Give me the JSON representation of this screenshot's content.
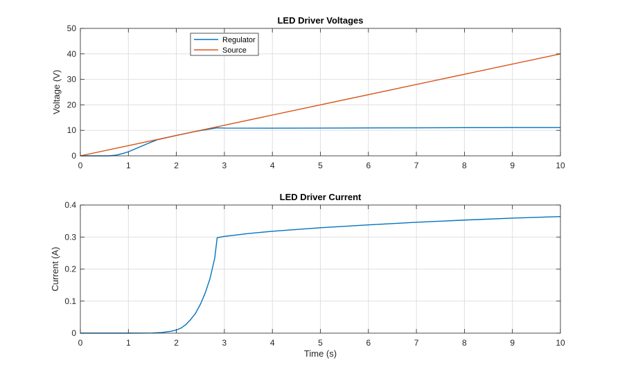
{
  "chart_data": [
    {
      "type": "line",
      "title": "LED Driver Voltages",
      "xlabel": "",
      "ylabel": "Voltage (V)",
      "xlim": [
        0,
        10
      ],
      "ylim": [
        0,
        50
      ],
      "xticks": [
        0,
        1,
        2,
        3,
        4,
        5,
        6,
        7,
        8,
        9,
        10
      ],
      "yticks": [
        0,
        10,
        20,
        30,
        40,
        50
      ],
      "grid": true,
      "legend_position": "top-left",
      "series": [
        {
          "name": "Regulator",
          "color": "#0072BD",
          "x": [
            0,
            0.6,
            0.75,
            0.9,
            1.0,
            1.2,
            1.4,
            1.6,
            2.0,
            2.4,
            2.85,
            3.0,
            4.0,
            5.0,
            6.0,
            7.0,
            8.0,
            9.0,
            10.0
          ],
          "y": [
            0,
            0,
            0.3,
            1.0,
            1.6,
            3.2,
            4.8,
            6.3,
            8.0,
            9.6,
            11.0,
            10.9,
            10.85,
            10.9,
            10.95,
            11.0,
            11.05,
            11.1,
            11.1
          ]
        },
        {
          "name": "Source",
          "color": "#D95319",
          "x": [
            0,
            10
          ],
          "y": [
            0,
            40
          ]
        }
      ]
    },
    {
      "type": "line",
      "title": "LED Driver Current",
      "xlabel": "Time (s)",
      "ylabel": "Current (A)",
      "xlim": [
        0,
        10
      ],
      "ylim": [
        0,
        0.4
      ],
      "xticks": [
        0,
        1,
        2,
        3,
        4,
        5,
        6,
        7,
        8,
        9,
        10
      ],
      "yticks": [
        0,
        0.1,
        0.2,
        0.3,
        0.4
      ],
      "grid": true,
      "series": [
        {
          "name": "",
          "color": "#0072BD",
          "x": [
            0,
            1.0,
            1.5,
            1.7,
            1.9,
            2.0,
            2.1,
            2.2,
            2.3,
            2.4,
            2.5,
            2.6,
            2.7,
            2.8,
            2.85,
            3.0,
            3.5,
            4.0,
            5.0,
            6.0,
            7.0,
            8.0,
            9.0,
            10.0
          ],
          "y": [
            0,
            0,
            0.0005,
            0.002,
            0.006,
            0.01,
            0.016,
            0.027,
            0.043,
            0.062,
            0.09,
            0.125,
            0.17,
            0.235,
            0.298,
            0.302,
            0.311,
            0.318,
            0.329,
            0.338,
            0.346,
            0.353,
            0.359,
            0.364
          ]
        }
      ]
    }
  ]
}
